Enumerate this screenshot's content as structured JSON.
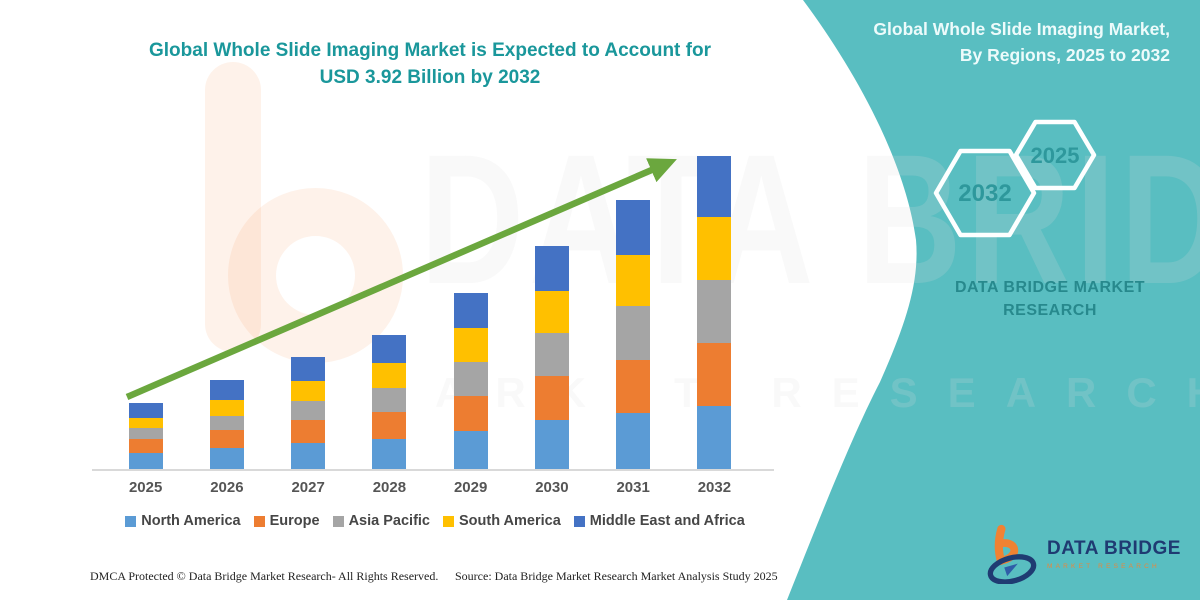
{
  "header": {
    "title_line1": "Global Whole Slide Imaging Market is Expected to Account for",
    "title_line2": "USD 3.92 Billion by 2032"
  },
  "side_panel": {
    "heading_line1": "Global Whole Slide Imaging Market,",
    "heading_line2": "By Regions, 2025 to 2032",
    "hexagons": [
      {
        "label": "2032"
      },
      {
        "label": "2025"
      }
    ],
    "brand_line1": "DATA BRIDGE MARKET",
    "brand_line2": "RESEARCH"
  },
  "chart_data": {
    "type": "bar",
    "stacked": true,
    "title": "Global Whole Slide Imaging Market is Expected to Account for USD 3.92 Billion by 2032",
    "unit": "USD Billion",
    "categories": [
      "2025",
      "2026",
      "2027",
      "2028",
      "2029",
      "2030",
      "2031",
      "2032"
    ],
    "series": [
      {
        "name": "North America",
        "color": "#5B9BD5",
        "values": [
          0.21,
          0.28,
          0.34,
          0.39,
          0.49,
          0.62,
          0.71,
          0.8
        ]
      },
      {
        "name": "Europe",
        "color": "#ED7D31",
        "values": [
          0.18,
          0.22,
          0.28,
          0.34,
          0.44,
          0.56,
          0.67,
          0.79
        ]
      },
      {
        "name": "Asia Pacific",
        "color": "#A5A5A5",
        "values": [
          0.13,
          0.18,
          0.24,
          0.3,
          0.42,
          0.53,
          0.67,
          0.79
        ]
      },
      {
        "name": "South America",
        "color": "#FFC000",
        "values": [
          0.13,
          0.19,
          0.25,
          0.31,
          0.42,
          0.53,
          0.64,
          0.78
        ]
      },
      {
        "name": "Middle East and Africa",
        "color": "#4472C4",
        "values": [
          0.19,
          0.25,
          0.3,
          0.35,
          0.44,
          0.56,
          0.68,
          0.76
        ]
      }
    ],
    "totals": [
      0.84,
      1.12,
      1.41,
      1.69,
      2.21,
      2.8,
      3.37,
      3.92
    ],
    "final_value_label": "USD 3.92 Billion by 2032",
    "ylim": [
      0,
      4.2
    ],
    "gridlines": false,
    "legend_position": "bottom",
    "trend_arrow": true
  },
  "watermark": {
    "line1": "DATA BRIDGE",
    "line2": "MARKET RESEARCH"
  },
  "footer": {
    "dmca": "DMCA Protected © Data Bridge Market Research- All Rights Reserved.",
    "source": "Source: Data Bridge Market Research Market Analysis Study 2025"
  },
  "logo": {
    "name": "DATA BRIDGE",
    "tagline": "MARKET RESEARCH"
  },
  "colors": {
    "panel_teal": "#59BEC1",
    "title_teal": "#1A979B",
    "hexagon_label_teal": "#2E989C",
    "brand_teal": "#27898D",
    "arrow_green": "#6BA73E",
    "axis_gray": "#D9D9D9",
    "logo_navy": "#1F3B72",
    "logo_orange": "#F08232"
  }
}
